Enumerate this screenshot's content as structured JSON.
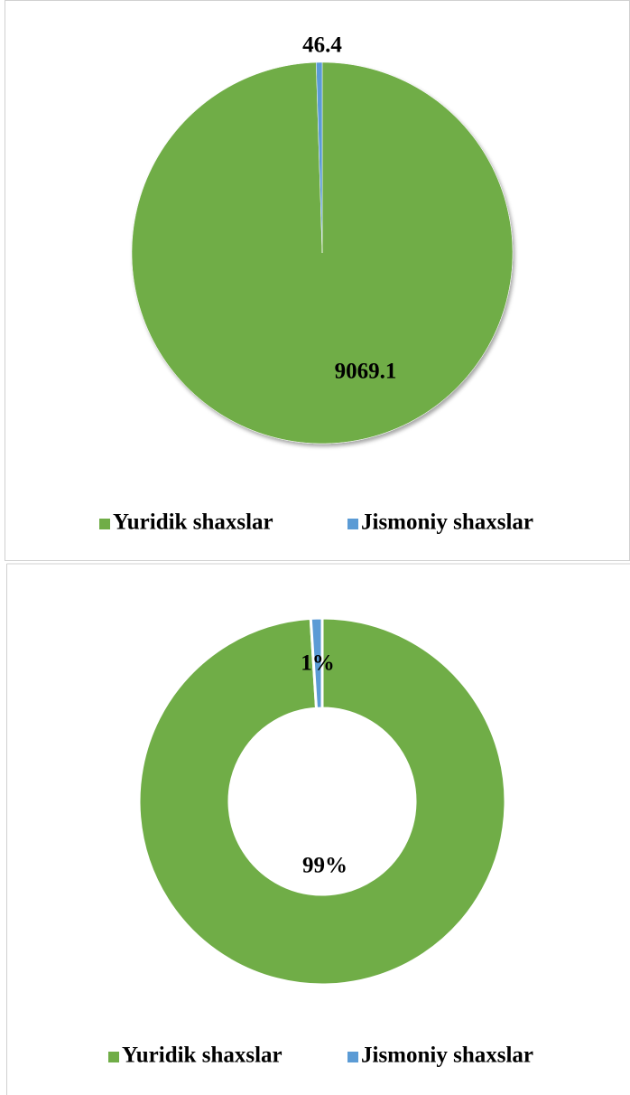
{
  "chart_data": [
    {
      "type": "pie",
      "categories": [
        "Yuridik shaxslar",
        "Jismoniy shaxslar"
      ],
      "values": [
        9069.1,
        46.4
      ],
      "colors": [
        "#70ad47",
        "#5b9bd5"
      ]
    },
    {
      "type": "donut",
      "categories": [
        "Yuridik shaxslar",
        "Jismoniy shaxslar"
      ],
      "values": [
        99,
        1
      ],
      "value_labels": [
        "99%",
        "1%"
      ],
      "colors": [
        "#70ad47",
        "#5b9bd5"
      ]
    }
  ]
}
